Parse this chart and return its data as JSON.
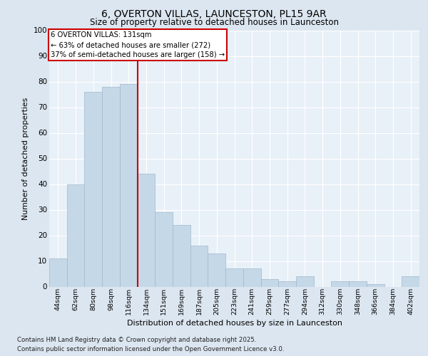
{
  "title_line1": "6, OVERTON VILLAS, LAUNCESTON, PL15 9AR",
  "title_line2": "Size of property relative to detached houses in Launceston",
  "xlabel": "Distribution of detached houses by size in Launceston",
  "ylabel": "Number of detached properties",
  "categories": [
    "44sqm",
    "62sqm",
    "80sqm",
    "98sqm",
    "116sqm",
    "134sqm",
    "151sqm",
    "169sqm",
    "187sqm",
    "205sqm",
    "223sqm",
    "241sqm",
    "259sqm",
    "277sqm",
    "294sqm",
    "312sqm",
    "330sqm",
    "348sqm",
    "366sqm",
    "384sqm",
    "402sqm"
  ],
  "values": [
    11,
    40,
    76,
    78,
    79,
    44,
    29,
    24,
    16,
    13,
    7,
    7,
    3,
    2,
    4,
    0,
    2,
    2,
    1,
    0,
    4
  ],
  "bar_color": "#c5d8e8",
  "bar_edgecolor": "#a0b8cc",
  "vline_x_index": 5,
  "vline_color": "#cc0000",
  "ylim": [
    0,
    100
  ],
  "yticks": [
    0,
    10,
    20,
    30,
    40,
    50,
    60,
    70,
    80,
    90,
    100
  ],
  "annotation_text": "6 OVERTON VILLAS: 131sqm\n← 63% of detached houses are smaller (272)\n37% of semi-detached houses are larger (158) →",
  "annotation_box_facecolor": "#ffffff",
  "annotation_box_edgecolor": "#cc0000",
  "footer_line1": "Contains HM Land Registry data © Crown copyright and database right 2025.",
  "footer_line2": "Contains public sector information licensed under the Open Government Licence v3.0.",
  "background_color": "#dce6f0",
  "plot_background": "#e8f0f8"
}
